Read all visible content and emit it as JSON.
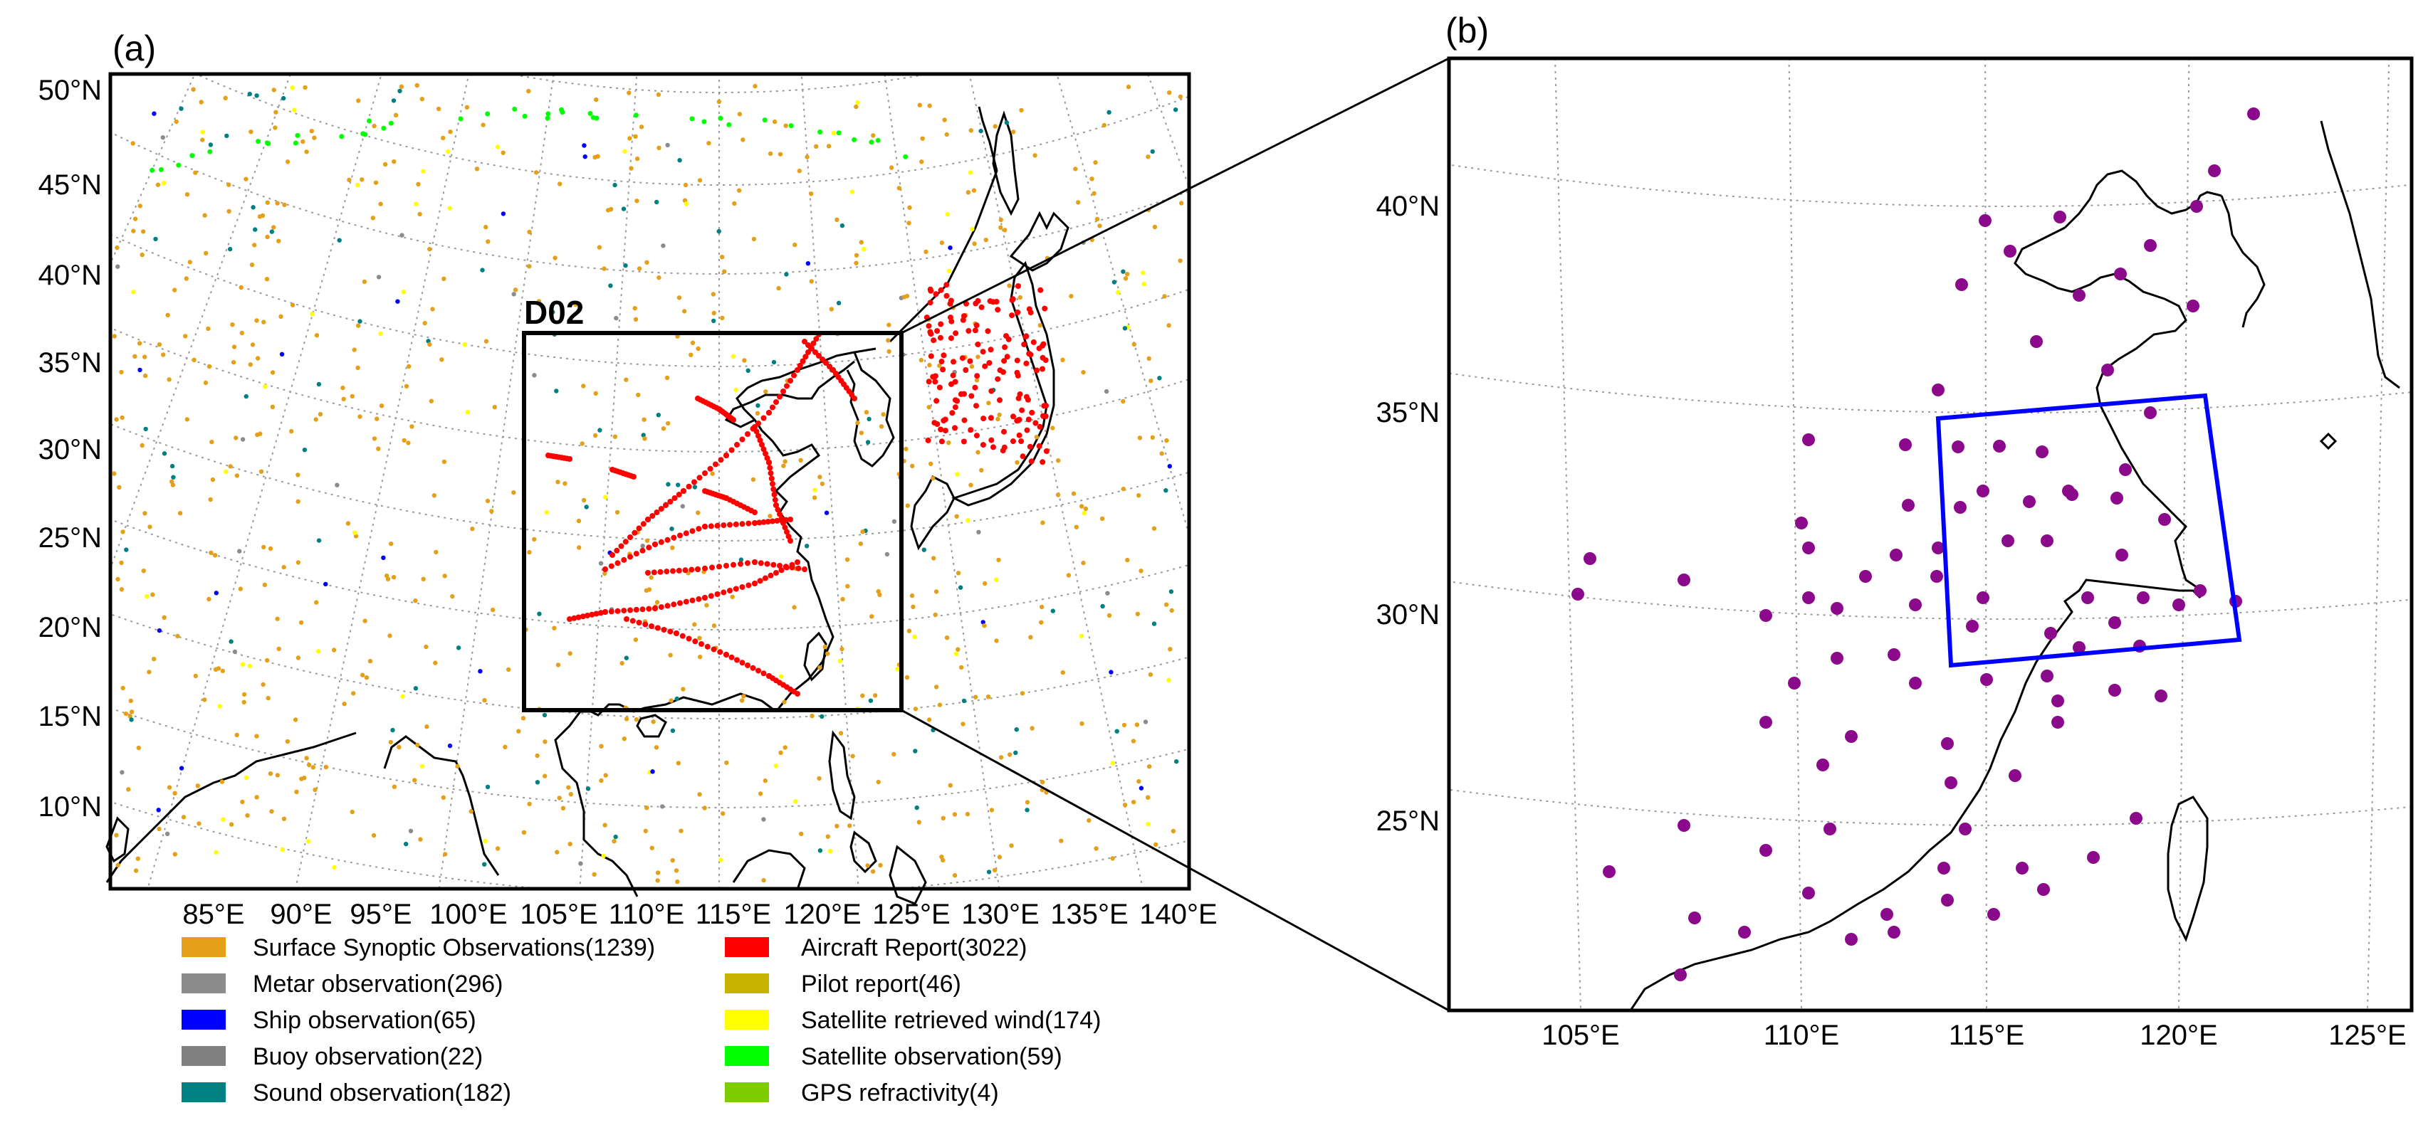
{
  "panel_a": {
    "label": "(a)",
    "lat_labels": [
      "50°N",
      "45°N",
      "40°N",
      "35°N",
      "30°N",
      "25°N",
      "20°N",
      "15°N",
      "10°N"
    ],
    "lon_labels": [
      "85°E",
      "90°E",
      "95°E",
      "100°E",
      "105°E",
      "110°E",
      "115°E",
      "120°E",
      "125°E",
      "130°E",
      "135°E",
      "140°E"
    ],
    "domain_label": "D02"
  },
  "panel_b": {
    "label": "(b)",
    "lat_labels": [
      "40°N",
      "35°N",
      "30°N",
      "25°N"
    ],
    "lon_labels": [
      "105°E",
      "110°E",
      "115°E",
      "120°E",
      "125°E"
    ]
  },
  "legend": [
    {
      "label": "Surface Synoptic Observations(1239)",
      "color": "#E5A01A"
    },
    {
      "label": "Metar observation(296)",
      "color": "#8C8C8C"
    },
    {
      "label": "Ship observation(65)",
      "color": "#0000FF"
    },
    {
      "label": "Buoy observation(22)",
      "color": "#808080"
    },
    {
      "label": "Sound observation(182)",
      "color": "#008080"
    },
    {
      "label": "Aircraft Report(3022)",
      "color": "#FF0000"
    },
    {
      "label": "Pilot report(46)",
      "color": "#C8B400"
    },
    {
      "label": "Satellite retrieved wind(174)",
      "color": "#FFFF00"
    },
    {
      "label": "Satellite observation(59)",
      "color": "#00FF00"
    },
    {
      "label": "GPS refractivity(4)",
      "color": "#7FCC00"
    }
  ],
  "colors": {
    "frame": "#000000",
    "grid": "#999999",
    "box_b": "#0000FF",
    "station": "#8B0A8B"
  }
}
